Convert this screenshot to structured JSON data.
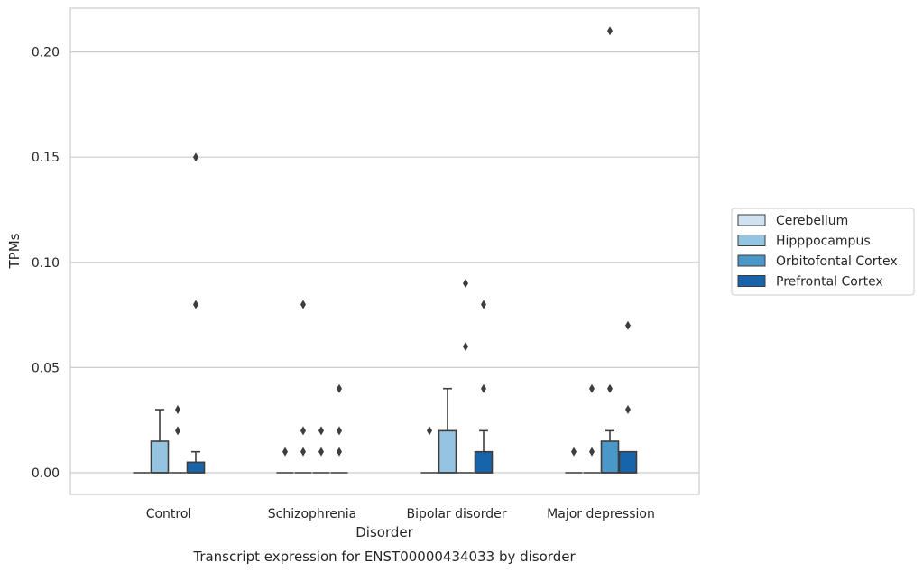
{
  "caption": "Transcript expression for ENST00000434033 by disorder",
  "chart_data": {
    "type": "box",
    "xlabel": "Disorder",
    "ylabel": "TPMs",
    "ylim": [
      -0.01,
      0.22
    ],
    "yticks": [
      0.0,
      0.05,
      0.1,
      0.15,
      0.2
    ],
    "ytick_labels": [
      "0.00",
      "0.05",
      "0.10",
      "0.15",
      "0.20"
    ],
    "grid": "horizontal",
    "legend_position": "right",
    "categories": [
      "Control",
      "Schizophrenia",
      "Bipolar disorder",
      "Major depression"
    ],
    "series": [
      {
        "name": "Cerebellum",
        "color": "#d0e1f2",
        "boxes": [
          {
            "q1": 0,
            "median": 0,
            "q3": 0,
            "whisker_low": 0,
            "whisker_high": 0,
            "fliers": []
          },
          {
            "q1": 0,
            "median": 0,
            "q3": 0,
            "whisker_low": 0,
            "whisker_high": 0,
            "fliers": [
              0.01
            ]
          },
          {
            "q1": 0,
            "median": 0,
            "q3": 0,
            "whisker_low": 0,
            "whisker_high": 0,
            "fliers": [
              0.02
            ]
          },
          {
            "q1": 0,
            "median": 0,
            "q3": 0,
            "whisker_low": 0,
            "whisker_high": 0,
            "fliers": [
              0.01
            ]
          }
        ]
      },
      {
        "name": "Hipppocampus",
        "color": "#94c4df",
        "boxes": [
          {
            "q1": 0,
            "median": 0,
            "q3": 0.015,
            "whisker_low": 0,
            "whisker_high": 0.03,
            "fliers": []
          },
          {
            "q1": 0,
            "median": 0,
            "q3": 0,
            "whisker_low": 0,
            "whisker_high": 0,
            "fliers": [
              0.01,
              0.02,
              0.08
            ]
          },
          {
            "q1": 0,
            "median": 0,
            "q3": 0.02,
            "whisker_low": 0,
            "whisker_high": 0.04,
            "fliers": []
          },
          {
            "q1": 0,
            "median": 0,
            "q3": 0,
            "whisker_low": 0,
            "whisker_high": 0,
            "fliers": [
              0.01,
              0.04
            ]
          }
        ]
      },
      {
        "name": "Orbitofontal Cortex",
        "color": "#4a98c9",
        "boxes": [
          {
            "q1": 0,
            "median": 0,
            "q3": 0,
            "whisker_low": 0,
            "whisker_high": 0,
            "fliers": [
              0.02,
              0.03
            ]
          },
          {
            "q1": 0,
            "median": 0,
            "q3": 0,
            "whisker_low": 0,
            "whisker_high": 0,
            "fliers": [
              0.01,
              0.02
            ]
          },
          {
            "q1": 0,
            "median": 0,
            "q3": 0,
            "whisker_low": 0,
            "whisker_high": 0,
            "fliers": [
              0.06,
              0.09
            ]
          },
          {
            "q1": 0,
            "median": 0,
            "q3": 0.015,
            "whisker_low": 0,
            "whisker_high": 0.02,
            "fliers": [
              0.04,
              0.21
            ]
          }
        ]
      },
      {
        "name": "Prefrontal Cortex",
        "color": "#1764ab",
        "boxes": [
          {
            "q1": 0,
            "median": 0,
            "q3": 0.005,
            "whisker_low": 0,
            "whisker_high": 0.01,
            "fliers": [
              0.08,
              0.15
            ]
          },
          {
            "q1": 0,
            "median": 0,
            "q3": 0,
            "whisker_low": 0,
            "whisker_high": 0,
            "fliers": [
              0.01,
              0.02,
              0.04
            ]
          },
          {
            "q1": 0,
            "median": 0,
            "q3": 0.01,
            "whisker_low": 0,
            "whisker_high": 0.02,
            "fliers": [
              0.04,
              0.08
            ]
          },
          {
            "q1": 0,
            "median": 0,
            "q3": 0.01,
            "whisker_low": 0,
            "whisker_high": 0.01,
            "fliers": [
              0.03,
              0.07
            ]
          }
        ]
      }
    ]
  }
}
